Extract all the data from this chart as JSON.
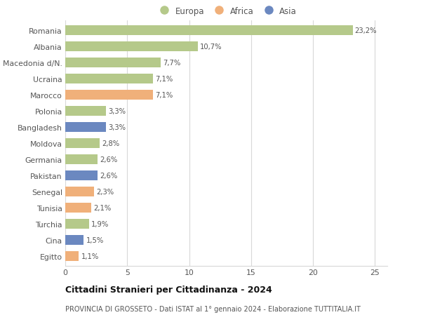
{
  "categories": [
    "Romania",
    "Albania",
    "Macedonia d/N.",
    "Ucraina",
    "Marocco",
    "Polonia",
    "Bangladesh",
    "Moldova",
    "Germania",
    "Pakistan",
    "Senegal",
    "Tunisia",
    "Turchia",
    "Cina",
    "Egitto"
  ],
  "values": [
    23.2,
    10.7,
    7.7,
    7.1,
    7.1,
    3.3,
    3.3,
    2.8,
    2.6,
    2.6,
    2.3,
    2.1,
    1.9,
    1.5,
    1.1
  ],
  "labels": [
    "23,2%",
    "10,7%",
    "7,7%",
    "7,1%",
    "7,1%",
    "3,3%",
    "3,3%",
    "2,8%",
    "2,6%",
    "2,6%",
    "2,3%",
    "2,1%",
    "1,9%",
    "1,5%",
    "1,1%"
  ],
  "continent": [
    "Europa",
    "Europa",
    "Europa",
    "Europa",
    "Africa",
    "Europa",
    "Asia",
    "Europa",
    "Europa",
    "Asia",
    "Africa",
    "Africa",
    "Europa",
    "Asia",
    "Africa"
  ],
  "colors": {
    "Europa": "#b5c98a",
    "Africa": "#f0b07a",
    "Asia": "#6b88c0"
  },
  "title": "Cittadini Stranieri per Cittadinanza - 2024",
  "subtitle": "PROVINCIA DI GROSSETO - Dati ISTAT al 1° gennaio 2024 - Elaborazione TUTTITALIA.IT",
  "xlim": [
    0,
    26
  ],
  "xticks": [
    0,
    5,
    10,
    15,
    20,
    25
  ],
  "background_color": "#ffffff",
  "grid_color": "#d8d8d8",
  "bar_height": 0.6
}
